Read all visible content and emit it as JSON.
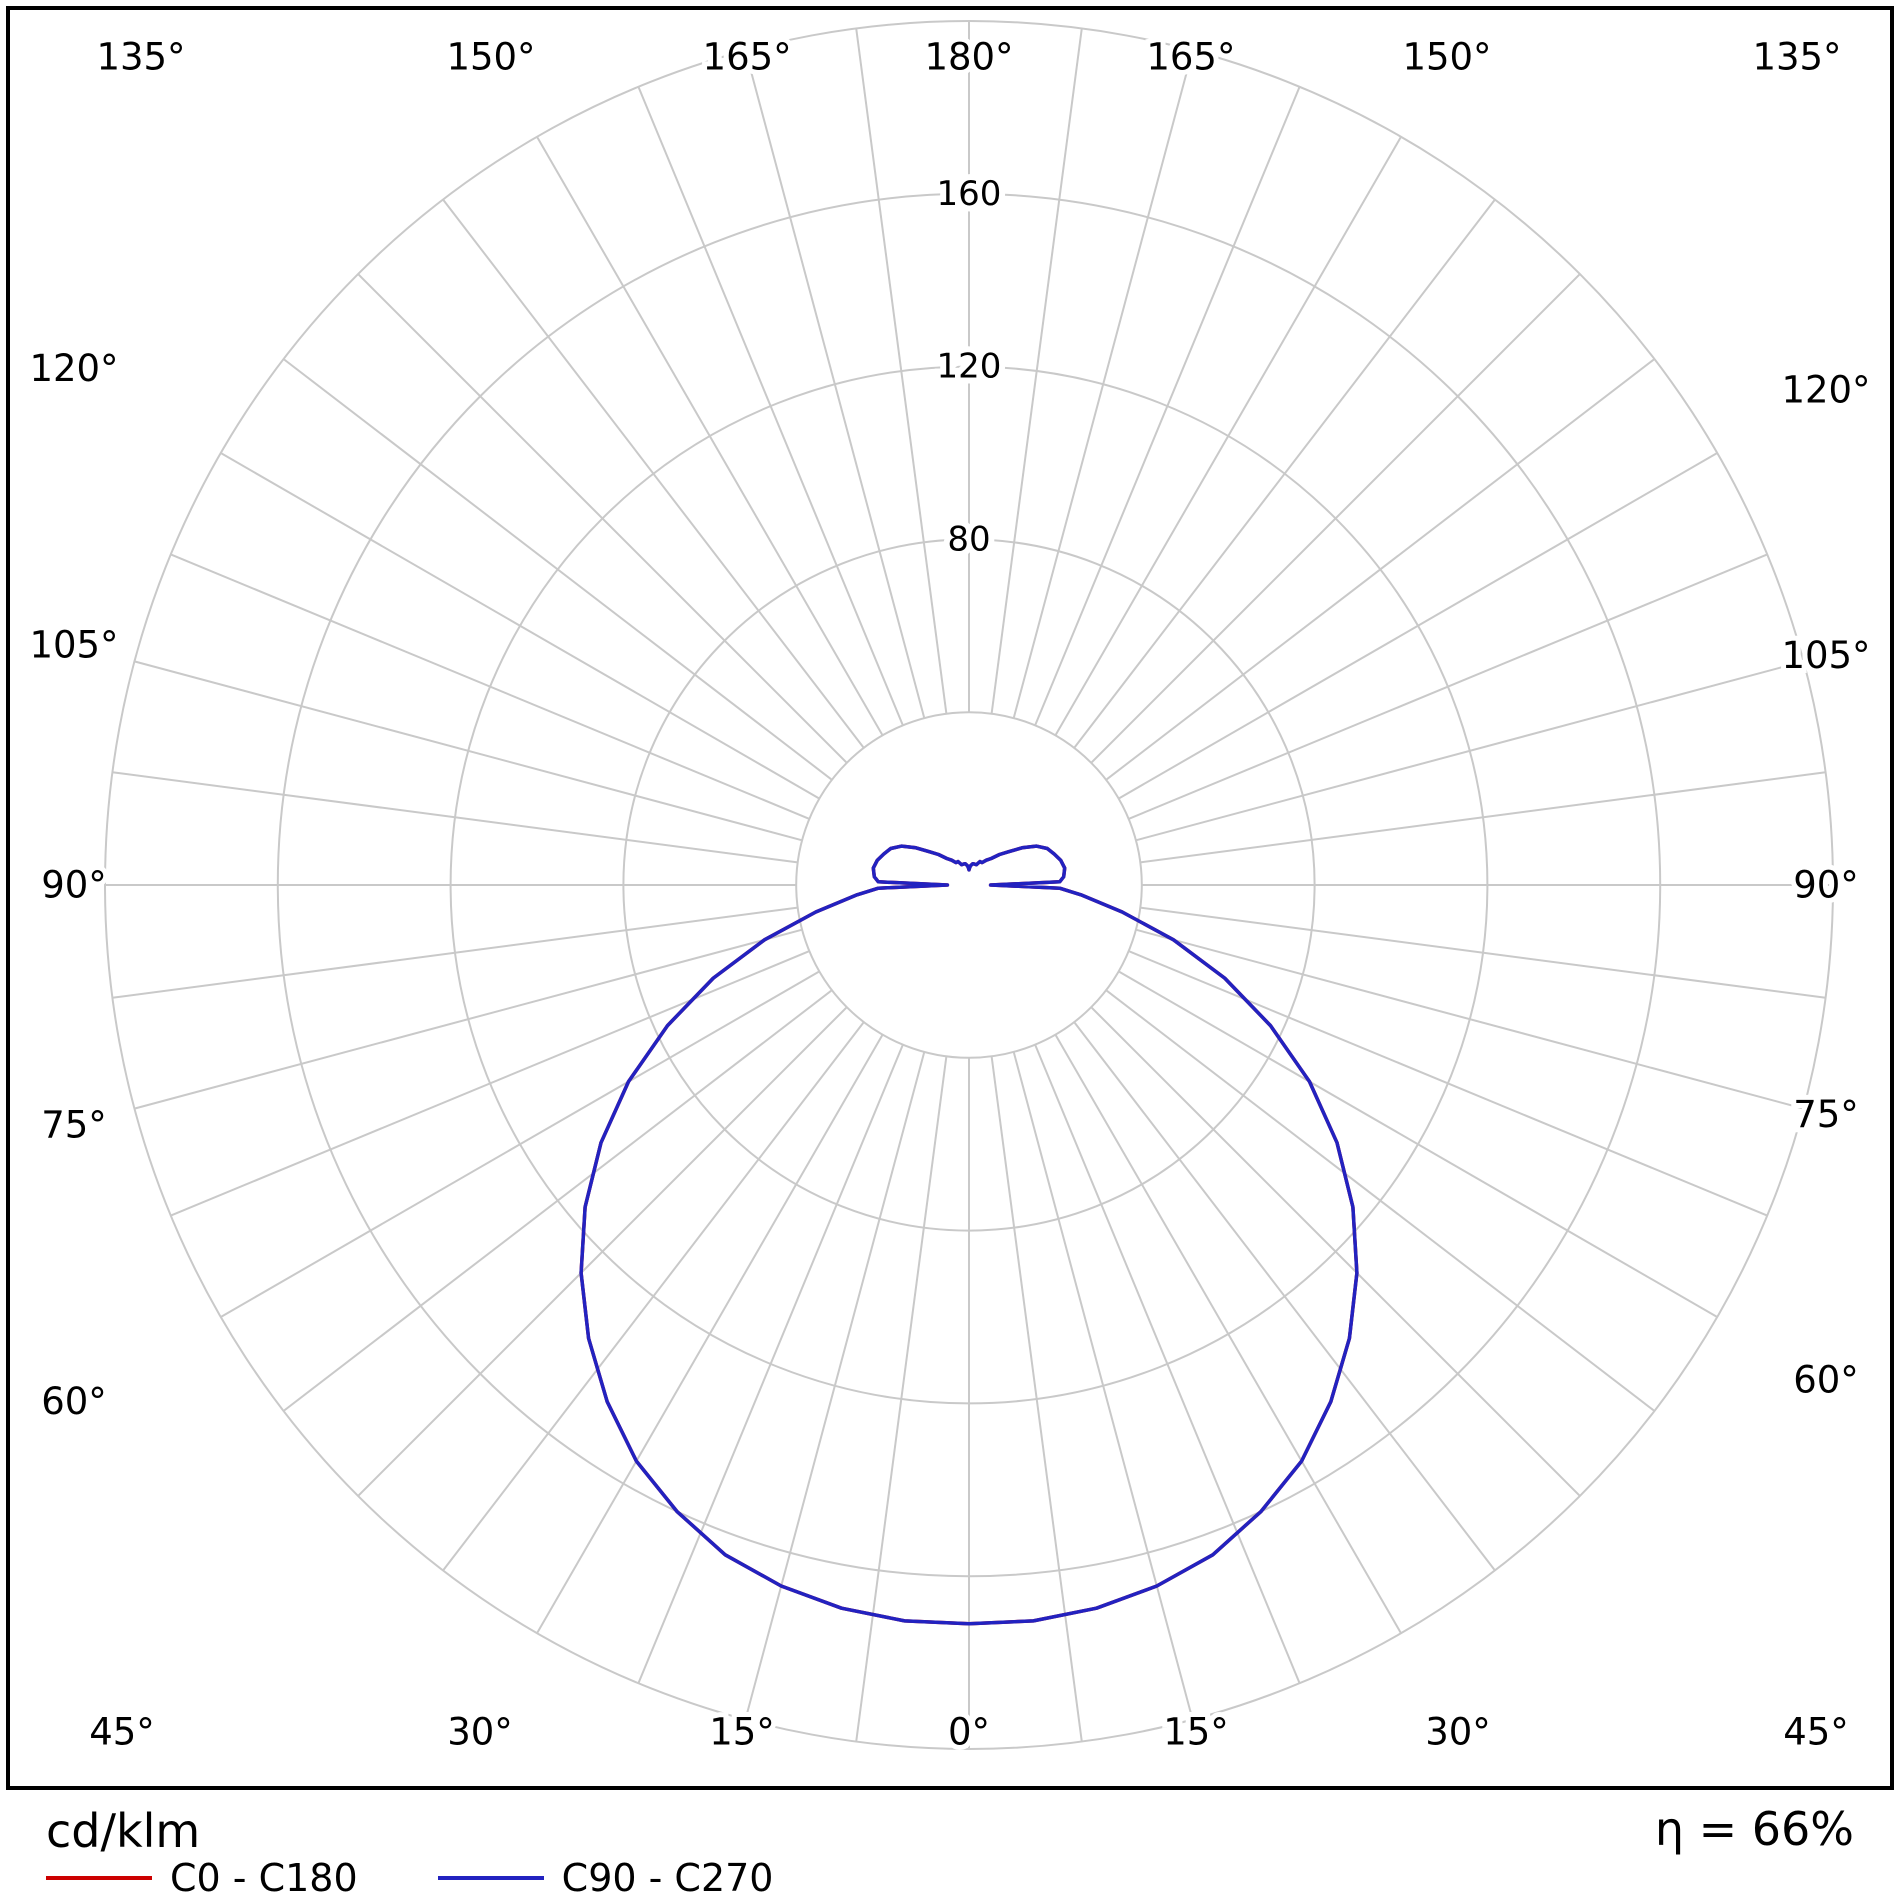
{
  "footer": {
    "unit_label": "cd/klm",
    "efficiency": "η = 66%",
    "legend": [
      {
        "label": "C0 - C180",
        "color": "#cc0000"
      },
      {
        "label": "C90 - C270",
        "color": "#2222c0"
      }
    ]
  },
  "chart_data": {
    "type": "polar-line",
    "description": "Luminous intensity distribution curve (polar photometric diagram)",
    "unit": "cd/klm",
    "efficiency_percent": 66,
    "rmax": 200,
    "radial_ticks": [
      40,
      80,
      120,
      160,
      200
    ],
    "radial_tick_labels": [
      {
        "value": 80,
        "label": "80"
      },
      {
        "value": 120,
        "label": "120"
      },
      {
        "value": 160,
        "label": "160"
      }
    ],
    "angle_grid_step_deg": 7.5,
    "angle_tick_labels": [
      {
        "deg": 0,
        "label": "0°"
      },
      {
        "deg": 15,
        "label": "15°"
      },
      {
        "deg": 30,
        "label": "30°"
      },
      {
        "deg": 45,
        "label": "45°"
      },
      {
        "deg": 60,
        "label": "60°"
      },
      {
        "deg": 75,
        "label": "75°"
      },
      {
        "deg": 90,
        "label": "90°"
      },
      {
        "deg": 105,
        "label": "105°"
      },
      {
        "deg": 120,
        "label": "120°"
      },
      {
        "deg": 135,
        "label": "135°"
      },
      {
        "deg": 150,
        "label": "150°"
      },
      {
        "deg": 165,
        "label": "165°"
      },
      {
        "deg": 180,
        "label": "180°"
      }
    ],
    "grid_color": "#c9c9c9",
    "series": [
      {
        "name": "C0 - C180",
        "color": "#cc0000",
        "gamma": [
          0,
          5,
          10,
          15,
          20,
          25,
          30,
          35,
          40,
          45,
          50,
          55,
          60,
          65,
          70,
          75,
          80,
          85,
          88,
          90,
          92,
          95,
          100,
          105,
          110,
          115,
          120,
          125,
          130,
          135,
          140,
          145,
          150,
          155,
          160,
          165,
          170,
          175,
          178,
          180
        ],
        "values": [
          171,
          171,
          170,
          168,
          165,
          160,
          154,
          146,
          137,
          127,
          116,
          104,
          91,
          77,
          63,
          49,
          36,
          26,
          21,
          5,
          21,
          22,
          22.5,
          22,
          21,
          20,
          18,
          15,
          12,
          10,
          8,
          7,
          6,
          6,
          5,
          5,
          5,
          4.5,
          4,
          3.5
        ]
      },
      {
        "name": "C90 - C270",
        "color": "#2222c0",
        "gamma": [
          0,
          5,
          10,
          15,
          20,
          25,
          30,
          35,
          40,
          45,
          50,
          55,
          60,
          65,
          70,
          75,
          80,
          85,
          88,
          90,
          92,
          95,
          100,
          105,
          110,
          115,
          120,
          125,
          130,
          135,
          140,
          145,
          150,
          155,
          160,
          165,
          170,
          175,
          178,
          180
        ],
        "values": [
          171,
          171,
          170,
          168,
          165,
          160,
          154,
          146,
          137,
          127,
          116,
          104,
          91,
          77,
          63,
          49,
          36,
          26,
          21,
          5,
          21,
          22,
          22.5,
          22,
          21,
          20,
          18,
          15,
          12,
          10,
          8,
          7,
          6,
          6,
          5,
          5,
          5,
          4.5,
          4,
          3.5
        ]
      }
    ]
  }
}
